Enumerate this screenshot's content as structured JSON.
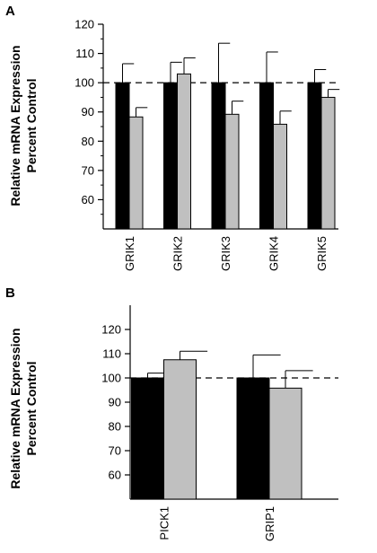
{
  "colors": {
    "control": "#000000",
    "treated": "#c0c0c0",
    "axis": "#000000"
  },
  "chart_data": [
    {
      "type": "bar",
      "panel_label": "A",
      "ylabel_lines": [
        "Relative mRNA Expression",
        "Percent Control"
      ],
      "ylim": [
        50,
        120
      ],
      "y_ticks": [
        60,
        70,
        80,
        90,
        100,
        110,
        120
      ],
      "reference_line": 100,
      "categories": [
        "GRIK1",
        "GRIK2",
        "GRIK3",
        "GRIK4",
        "GRIK5"
      ],
      "series": [
        {
          "values": [
            100,
            100,
            100,
            100,
            100
          ],
          "errors": [
            6.5,
            7,
            13.5,
            10.5,
            4.5
          ],
          "color": "#000000"
        },
        {
          "values": [
            88.3,
            103,
            89.2,
            85.8,
            95
          ],
          "errors": [
            3.2,
            5.5,
            4.5,
            4.5,
            2.7
          ],
          "color": "#c0c0c0"
        }
      ],
      "grid": false
    },
    {
      "type": "bar",
      "panel_label": "B",
      "ylabel_lines": [
        "Relative mRNA Expression",
        "Percent Control"
      ],
      "ylim": [
        50,
        130
      ],
      "y_ticks": [
        60,
        70,
        80,
        90,
        100,
        110,
        120
      ],
      "reference_line": 100,
      "categories": [
        "PICK1",
        "GRIP1"
      ],
      "series": [
        {
          "values": [
            100,
            100
          ],
          "errors": [
            2,
            9.5
          ],
          "color": "#000000"
        },
        {
          "values": [
            107.5,
            95.8
          ],
          "errors": [
            3.5,
            7.2
          ],
          "color": "#c0c0c0"
        }
      ],
      "grid": false
    }
  ]
}
